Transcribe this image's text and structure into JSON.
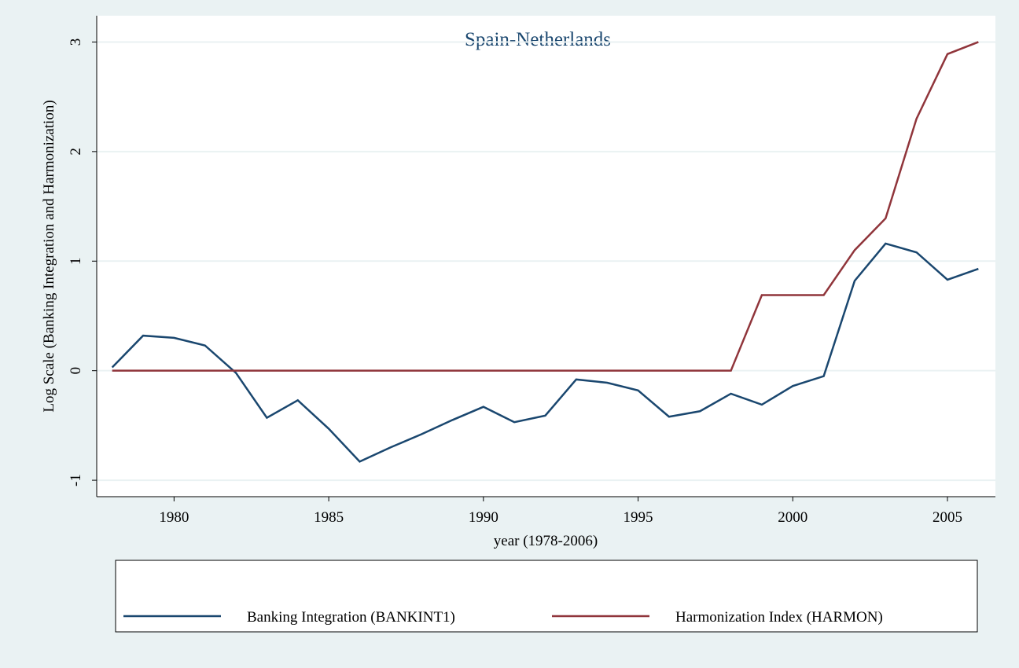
{
  "chart_data": {
    "type": "line",
    "title": "Spain-Netherlands",
    "x_label": "year (1978-2006)",
    "y_label": "Log Scale (Banking Integration and Harmonization)",
    "x": [
      1978,
      1979,
      1980,
      1981,
      1982,
      1983,
      1984,
      1985,
      1986,
      1987,
      1988,
      1989,
      1990,
      1991,
      1992,
      1993,
      1994,
      1995,
      1996,
      1997,
      1998,
      1999,
      2000,
      2001,
      2002,
      2003,
      2004,
      2005,
      2006
    ],
    "series": [
      {
        "name": "Banking Integration (BANKINT1)",
        "color": "#1a476f",
        "values": [
          0.03,
          0.32,
          0.3,
          0.23,
          -0.02,
          -0.43,
          -0.27,
          -0.53,
          -0.83,
          -0.7,
          -0.58,
          -0.45,
          -0.33,
          -0.47,
          -0.41,
          -0.08,
          -0.11,
          -0.18,
          -0.42,
          -0.37,
          -0.21,
          -0.31,
          -0.14,
          -0.05,
          0.82,
          1.16,
          1.08,
          0.83,
          0.93
        ]
      },
      {
        "name": "Harmonization Index (HARMON)",
        "color": "#90353b",
        "values": [
          0,
          0,
          0,
          0,
          0,
          0,
          0,
          0,
          0,
          0,
          0,
          0,
          0,
          0,
          0,
          0,
          0,
          0,
          0,
          0,
          0,
          0.69,
          0.69,
          0.69,
          1.1,
          1.39,
          2.3,
          2.89,
          3.0
        ]
      }
    ],
    "xlim": [
      1977.5,
      2006.55
    ],
    "xticks": [
      1980,
      1985,
      1990,
      1995,
      2000,
      2005
    ],
    "ylim": [
      -1.15,
      3.24
    ],
    "yticks": [
      -1,
      0,
      1,
      2,
      3
    ],
    "grid": true,
    "legend": "bottom"
  }
}
